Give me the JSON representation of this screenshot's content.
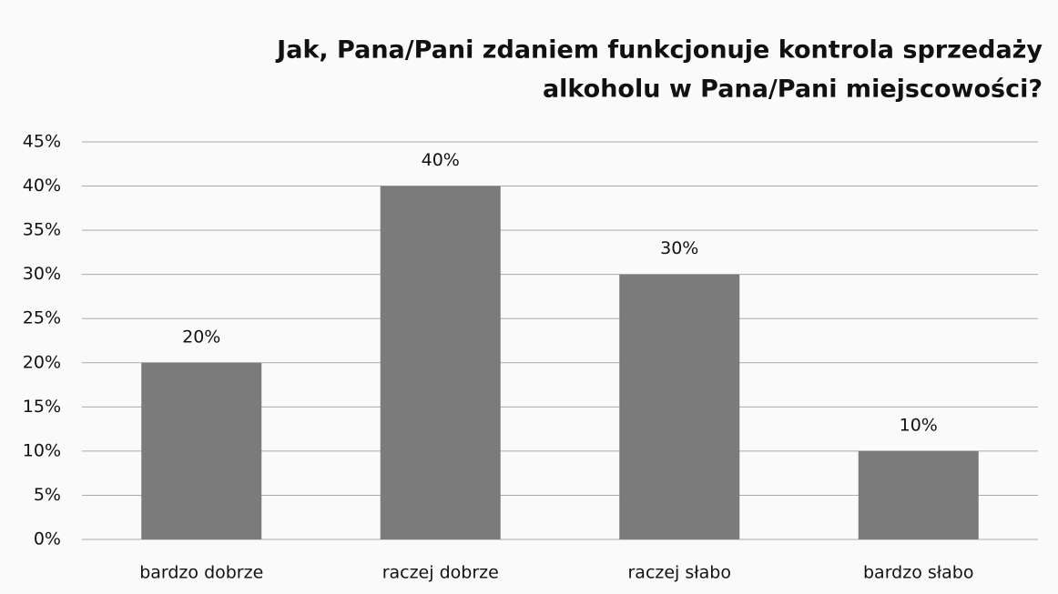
{
  "chart_data": {
    "type": "bar",
    "title": [
      "Jak, Pana/Pani zdaniem funkcjonuje kontrola sprzedaży",
      "alkoholu w Pana/Pani miejscowości?"
    ],
    "categories": [
      "bardzo dobrze",
      "raczej dobrze",
      "raczej słabo",
      "bardzo słabo"
    ],
    "values": [
      20,
      40,
      30,
      10
    ],
    "value_labels": [
      "20%",
      "40%",
      "30%",
      "10%"
    ],
    "color": "#7b7b7b",
    "ylim": [
      0,
      45
    ],
    "yticks": [
      {
        "value": 0,
        "label": "0%"
      },
      {
        "value": 5,
        "label": "5%"
      },
      {
        "value": 10,
        "label": "10%"
      },
      {
        "value": 15,
        "label": "15%"
      },
      {
        "value": 20,
        "label": "20%"
      },
      {
        "value": 25,
        "label": "25%"
      },
      {
        "value": 30,
        "label": "30%"
      },
      {
        "value": 35,
        "label": "35%"
      },
      {
        "value": 40,
        "label": "40%"
      },
      {
        "value": 45,
        "label": "45%"
      }
    ],
    "grid": true
  }
}
